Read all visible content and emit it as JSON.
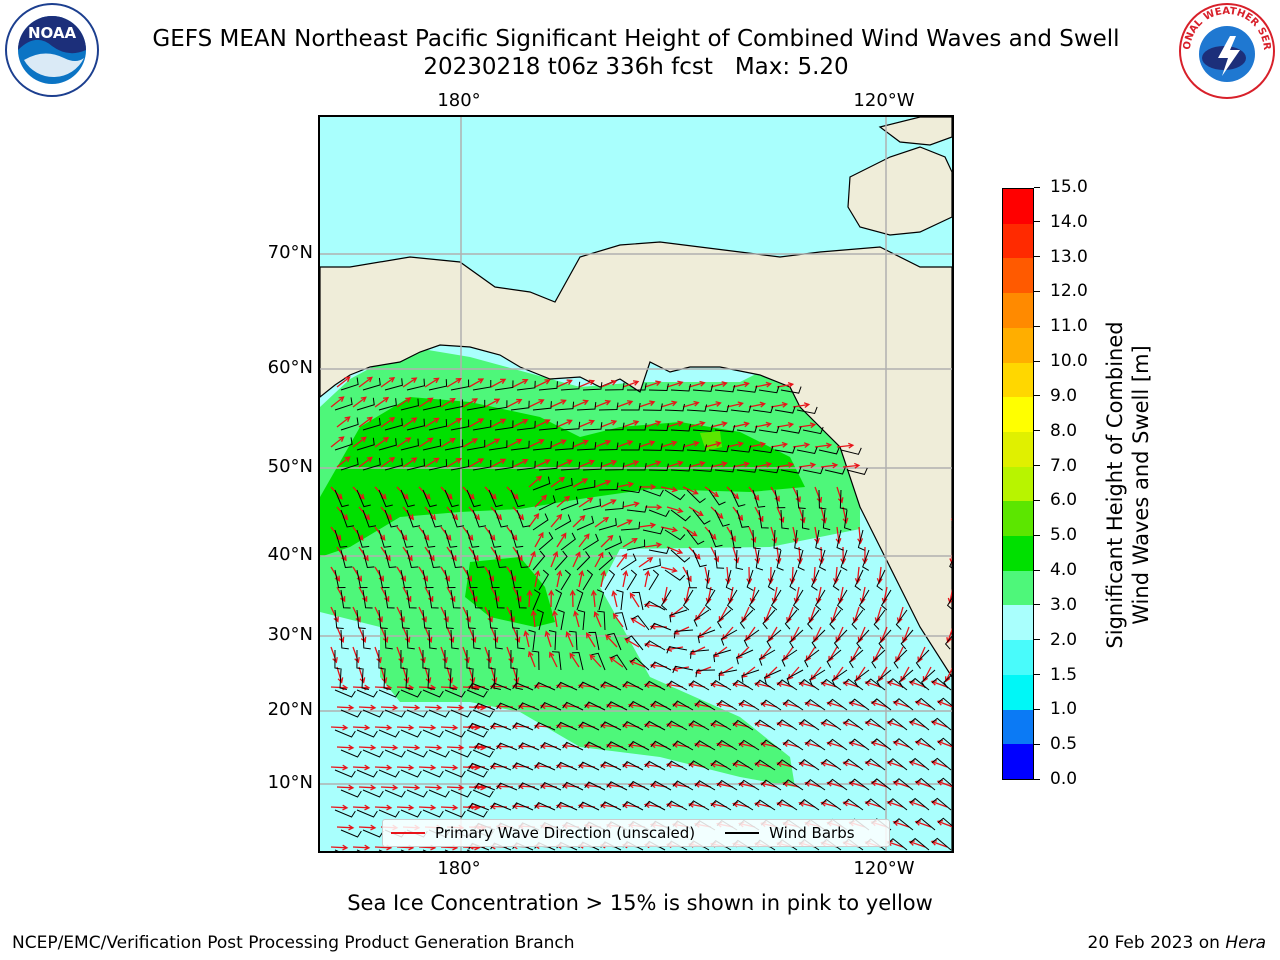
{
  "header": {
    "title": "GEFS MEAN Northeast Pacific Significant Height of Combined Wind Waves and Swell",
    "subtitle": "20230218 t06z 336h fcst   Max: 5.20"
  },
  "map": {
    "lon_labels_top": [
      "180°",
      "120°W"
    ],
    "lon_labels_bottom": [
      "180°",
      "120°W"
    ],
    "lat_labels": [
      "70°N",
      "60°N",
      "50°N",
      "40°N",
      "30°N",
      "20°N",
      "10°N"
    ],
    "land_color": "#efedd9",
    "ocean_base_color": "#a9fffd",
    "gridline_color": "#b0b0b0",
    "wave_arrow_color": "#e8141a",
    "wind_barb_color": "#000000"
  },
  "legend": {
    "items": [
      {
        "label": "Primary Wave Direction (unscaled)",
        "color": "#e8141a"
      },
      {
        "label": "Wind Barbs",
        "color": "#000000"
      }
    ]
  },
  "colorbar": {
    "label_line1": "Significant Height of Combined",
    "label_line2": "Wind Waves and Swell [m]",
    "ticks": [
      "0.0",
      "0.5",
      "1.0",
      "1.5",
      "2.0",
      "3.0",
      "4.0",
      "5.0",
      "6.0",
      "7.0",
      "8.0",
      "9.0",
      "10.0",
      "11.0",
      "12.0",
      "13.0",
      "14.0",
      "15.0"
    ],
    "colors": [
      "#0000ff",
      "#0b7af5",
      "#00f7f7",
      "#49fbfb",
      "#a9fffd",
      "#4ef77a",
      "#00e000",
      "#5ce600",
      "#b8f400",
      "#e0f000",
      "#ffff00",
      "#ffd700",
      "#ffae00",
      "#ff8a00",
      "#ff5a00",
      "#ff2a00",
      "#ff0000"
    ]
  },
  "footer": {
    "note": "Sea Ice Concentration > 15% is shown in pink to yellow",
    "left": "NCEP/EMC/Verification Post Processing Product Generation Branch",
    "right_prefix": "20 Feb 2023 on ",
    "right_host": "Hera"
  },
  "logos": {
    "left_text": "NOAA",
    "right_text": "NATIONAL WEATHER SERVICE"
  }
}
